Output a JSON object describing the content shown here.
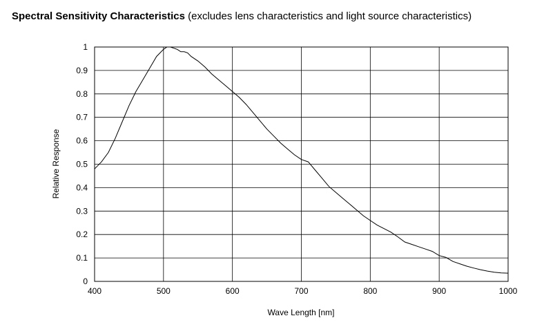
{
  "chart_data": {
    "type": "line",
    "title": "Spectral Sensitivity Characteristics",
    "subtitle": "(excludes lens characteristics and light source characteristics)",
    "xlabel": "Wave Length [nm]",
    "ylabel": "Relative Response",
    "xlim": [
      400,
      1000
    ],
    "ylim": [
      0,
      1
    ],
    "xticks": [
      "400",
      "500",
      "600",
      "700",
      "800",
      "900",
      "1000"
    ],
    "yticks": [
      "0",
      "0.1",
      "0.2",
      "0.3",
      "0.4",
      "0.5",
      "0.6",
      "0.7",
      "0.8",
      "0.9",
      "1"
    ],
    "grid": true,
    "series": [
      {
        "x": [
          400,
          410,
          420,
          430,
          440,
          450,
          460,
          470,
          480,
          490,
          500,
          505,
          510,
          515,
          520,
          525,
          530,
          535,
          540,
          550,
          560,
          570,
          580,
          590,
          600,
          610,
          620,
          630,
          640,
          650,
          660,
          670,
          680,
          690,
          700,
          710,
          720,
          730,
          740,
          750,
          760,
          770,
          780,
          790,
          800,
          810,
          820,
          830,
          840,
          850,
          860,
          870,
          880,
          890,
          900,
          910,
          920,
          930,
          940,
          950,
          960,
          970,
          980,
          990,
          1000
        ],
        "y": [
          0.48,
          0.51,
          0.55,
          0.61,
          0.68,
          0.75,
          0.81,
          0.86,
          0.91,
          0.96,
          0.99,
          1.0,
          1.0,
          0.995,
          0.99,
          0.98,
          0.98,
          0.975,
          0.96,
          0.94,
          0.915,
          0.885,
          0.86,
          0.835,
          0.81,
          0.785,
          0.755,
          0.72,
          0.685,
          0.65,
          0.62,
          0.59,
          0.565,
          0.54,
          0.52,
          0.51,
          0.475,
          0.44,
          0.405,
          0.38,
          0.355,
          0.33,
          0.305,
          0.28,
          0.26,
          0.24,
          0.225,
          0.21,
          0.19,
          0.168,
          0.158,
          0.148,
          0.138,
          0.128,
          0.11,
          0.102,
          0.085,
          0.075,
          0.065,
          0.057,
          0.05,
          0.044,
          0.039,
          0.036,
          0.035
        ]
      }
    ]
  }
}
